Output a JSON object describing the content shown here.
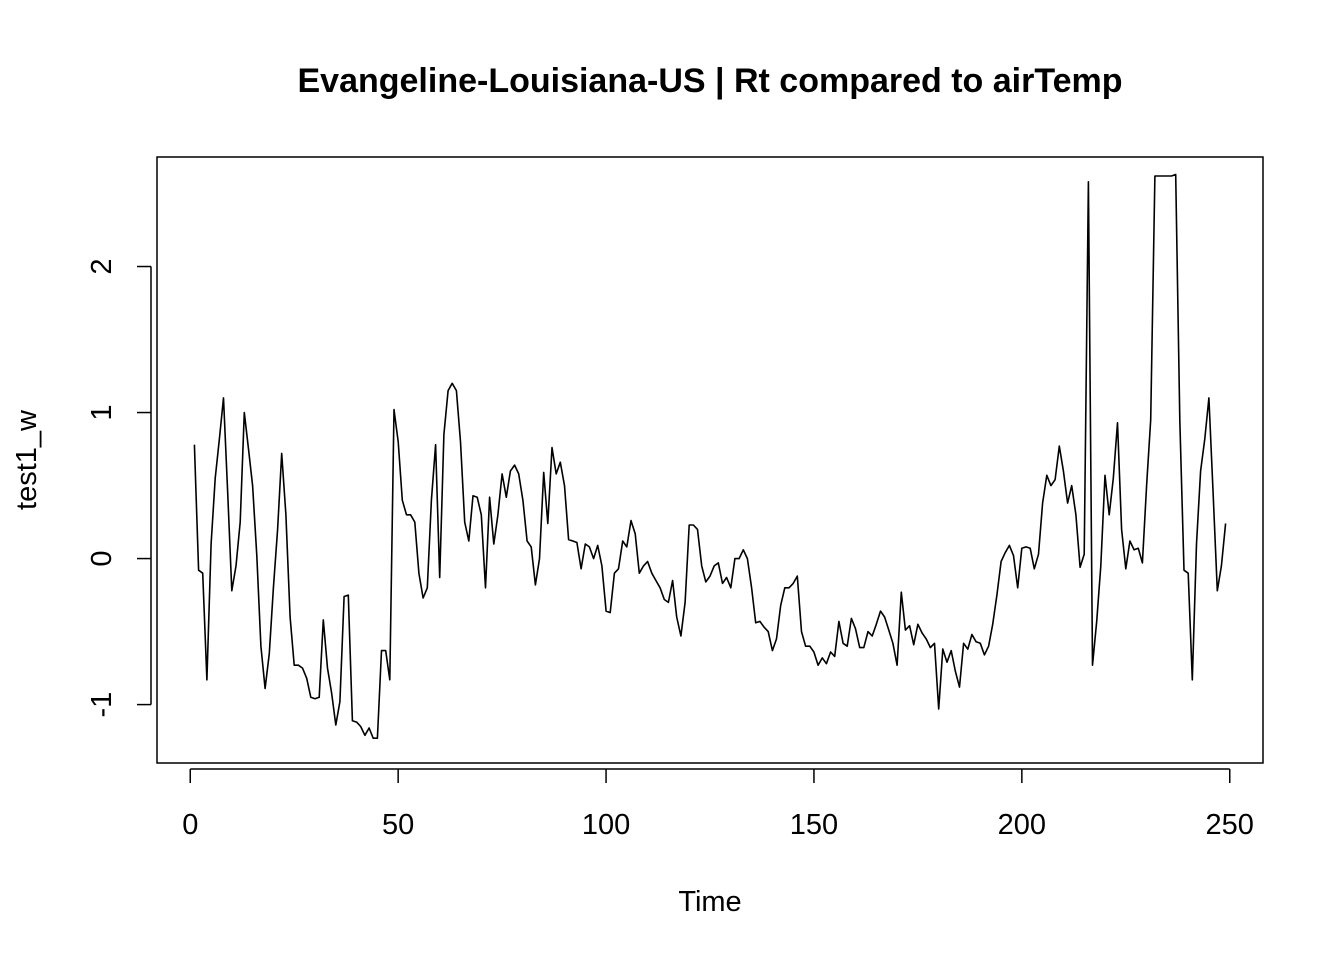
{
  "chart_data": {
    "type": "line",
    "title": "Evangeline-Louisiana-US | Rt compared to airTemp",
    "xlabel": "Time",
    "ylabel": "test1_w",
    "xlim": [
      -8,
      258
    ],
    "ylim": [
      -1.4,
      2.75
    ],
    "xticks": [
      0,
      50,
      100,
      150,
      200,
      250
    ],
    "yticks": [
      -1,
      0,
      1,
      2
    ],
    "grid": false,
    "legend": "none",
    "line_color": "#000000",
    "points": [
      [
        1,
        0.78
      ],
      [
        2,
        -0.08
      ],
      [
        3,
        -0.1
      ],
      [
        4,
        -0.83
      ],
      [
        5,
        0.1
      ],
      [
        6,
        0.55
      ],
      [
        7,
        0.82
      ],
      [
        8,
        1.1
      ],
      [
        9,
        0.45
      ],
      [
        10,
        -0.22
      ],
      [
        11,
        -0.05
      ],
      [
        12,
        0.25
      ],
      [
        13,
        1.0
      ],
      [
        14,
        0.75
      ],
      [
        15,
        0.5
      ],
      [
        16,
        0.02
      ],
      [
        17,
        -0.6
      ],
      [
        18,
        -0.89
      ],
      [
        19,
        -0.65
      ],
      [
        20,
        -0.2
      ],
      [
        21,
        0.2
      ],
      [
        22,
        0.72
      ],
      [
        23,
        0.3
      ],
      [
        24,
        -0.4
      ],
      [
        25,
        -0.73
      ],
      [
        26,
        -0.73
      ],
      [
        27,
        -0.75
      ],
      [
        28,
        -0.82
      ],
      [
        29,
        -0.95
      ],
      [
        30,
        -0.96
      ],
      [
        31,
        -0.95
      ],
      [
        32,
        -0.42
      ],
      [
        33,
        -0.75
      ],
      [
        34,
        -0.92
      ],
      [
        35,
        -1.14
      ],
      [
        36,
        -0.98
      ],
      [
        37,
        -0.26
      ],
      [
        38,
        -0.25
      ],
      [
        39,
        -1.11
      ],
      [
        40,
        -1.12
      ],
      [
        41,
        -1.15
      ],
      [
        42,
        -1.21
      ],
      [
        43,
        -1.16
      ],
      [
        44,
        -1.23
      ],
      [
        45,
        -1.23
      ],
      [
        46,
        -0.63
      ],
      [
        47,
        -0.63
      ],
      [
        48,
        -0.83
      ],
      [
        49,
        1.02
      ],
      [
        50,
        0.8
      ],
      [
        51,
        0.4
      ],
      [
        52,
        0.3
      ],
      [
        53,
        0.3
      ],
      [
        54,
        0.25
      ],
      [
        55,
        -0.1
      ],
      [
        56,
        -0.27
      ],
      [
        57,
        -0.2
      ],
      [
        58,
        0.4
      ],
      [
        59,
        0.78
      ],
      [
        60,
        -0.13
      ],
      [
        61,
        0.85
      ],
      [
        62,
        1.15
      ],
      [
        63,
        1.2
      ],
      [
        64,
        1.15
      ],
      [
        65,
        0.8
      ],
      [
        66,
        0.25
      ],
      [
        67,
        0.12
      ],
      [
        68,
        0.43
      ],
      [
        69,
        0.42
      ],
      [
        70,
        0.3
      ],
      [
        71,
        -0.2
      ],
      [
        72,
        0.42
      ],
      [
        73,
        0.1
      ],
      [
        74,
        0.3
      ],
      [
        75,
        0.58
      ],
      [
        76,
        0.42
      ],
      [
        77,
        0.6
      ],
      [
        78,
        0.64
      ],
      [
        79,
        0.58
      ],
      [
        80,
        0.4
      ],
      [
        81,
        0.12
      ],
      [
        82,
        0.08
      ],
      [
        83,
        -0.18
      ],
      [
        84,
        0.0
      ],
      [
        85,
        0.59
      ],
      [
        86,
        0.24
      ],
      [
        87,
        0.76
      ],
      [
        88,
        0.58
      ],
      [
        89,
        0.66
      ],
      [
        90,
        0.5
      ],
      [
        91,
        0.13
      ],
      [
        92,
        0.12
      ],
      [
        93,
        0.11
      ],
      [
        94,
        -0.07
      ],
      [
        95,
        0.1
      ],
      [
        96,
        0.08
      ],
      [
        97,
        0.0
      ],
      [
        98,
        0.09
      ],
      [
        99,
        -0.05
      ],
      [
        100,
        -0.36
      ],
      [
        101,
        -0.37
      ],
      [
        102,
        -0.1
      ],
      [
        103,
        -0.07
      ],
      [
        104,
        0.12
      ],
      [
        105,
        0.08
      ],
      [
        106,
        0.26
      ],
      [
        107,
        0.17
      ],
      [
        108,
        -0.1
      ],
      [
        109,
        -0.05
      ],
      [
        110,
        -0.02
      ],
      [
        111,
        -0.1
      ],
      [
        112,
        -0.15
      ],
      [
        113,
        -0.2
      ],
      [
        114,
        -0.28
      ],
      [
        115,
        -0.3
      ],
      [
        116,
        -0.15
      ],
      [
        117,
        -0.4
      ],
      [
        118,
        -0.53
      ],
      [
        119,
        -0.3
      ],
      [
        120,
        0.23
      ],
      [
        121,
        0.23
      ],
      [
        122,
        0.2
      ],
      [
        123,
        -0.05
      ],
      [
        124,
        -0.16
      ],
      [
        125,
        -0.12
      ],
      [
        126,
        -0.05
      ],
      [
        127,
        -0.03
      ],
      [
        128,
        -0.17
      ],
      [
        129,
        -0.13
      ],
      [
        130,
        -0.2
      ],
      [
        131,
        0.0
      ],
      [
        132,
        0.0
      ],
      [
        133,
        0.06
      ],
      [
        134,
        0.0
      ],
      [
        135,
        -0.2
      ],
      [
        136,
        -0.44
      ],
      [
        137,
        -0.43
      ],
      [
        138,
        -0.47
      ],
      [
        139,
        -0.5
      ],
      [
        140,
        -0.63
      ],
      [
        141,
        -0.55
      ],
      [
        142,
        -0.32
      ],
      [
        143,
        -0.2
      ],
      [
        144,
        -0.2
      ],
      [
        145,
        -0.17
      ],
      [
        146,
        -0.12
      ],
      [
        147,
        -0.5
      ],
      [
        148,
        -0.6
      ],
      [
        149,
        -0.6
      ],
      [
        150,
        -0.64
      ],
      [
        151,
        -0.73
      ],
      [
        152,
        -0.68
      ],
      [
        153,
        -0.72
      ],
      [
        154,
        -0.64
      ],
      [
        155,
        -0.67
      ],
      [
        156,
        -0.43
      ],
      [
        157,
        -0.58
      ],
      [
        158,
        -0.6
      ],
      [
        159,
        -0.41
      ],
      [
        160,
        -0.48
      ],
      [
        161,
        -0.61
      ],
      [
        162,
        -0.61
      ],
      [
        163,
        -0.5
      ],
      [
        164,
        -0.53
      ],
      [
        165,
        -0.45
      ],
      [
        166,
        -0.36
      ],
      [
        167,
        -0.4
      ],
      [
        168,
        -0.49
      ],
      [
        169,
        -0.58
      ],
      [
        170,
        -0.73
      ],
      [
        171,
        -0.23
      ],
      [
        172,
        -0.49
      ],
      [
        173,
        -0.46
      ],
      [
        174,
        -0.59
      ],
      [
        175,
        -0.45
      ],
      [
        176,
        -0.51
      ],
      [
        177,
        -0.55
      ],
      [
        178,
        -0.61
      ],
      [
        179,
        -0.58
      ],
      [
        180,
        -1.03
      ],
      [
        181,
        -0.62
      ],
      [
        182,
        -0.71
      ],
      [
        183,
        -0.63
      ],
      [
        184,
        -0.77
      ],
      [
        185,
        -0.88
      ],
      [
        186,
        -0.58
      ],
      [
        187,
        -0.62
      ],
      [
        188,
        -0.52
      ],
      [
        189,
        -0.57
      ],
      [
        190,
        -0.58
      ],
      [
        191,
        -0.66
      ],
      [
        192,
        -0.6
      ],
      [
        193,
        -0.45
      ],
      [
        194,
        -0.25
      ],
      [
        195,
        -0.02
      ],
      [
        196,
        0.04
      ],
      [
        197,
        0.09
      ],
      [
        198,
        0.02
      ],
      [
        199,
        -0.2
      ],
      [
        200,
        0.07
      ],
      [
        201,
        0.08
      ],
      [
        202,
        0.07
      ],
      [
        203,
        -0.07
      ],
      [
        204,
        0.03
      ],
      [
        205,
        0.38
      ],
      [
        206,
        0.57
      ],
      [
        207,
        0.5
      ],
      [
        208,
        0.54
      ],
      [
        209,
        0.77
      ],
      [
        210,
        0.6
      ],
      [
        211,
        0.38
      ],
      [
        212,
        0.5
      ],
      [
        213,
        0.3
      ],
      [
        214,
        -0.06
      ],
      [
        215,
        0.03
      ],
      [
        216,
        2.58
      ],
      [
        217,
        -0.73
      ],
      [
        218,
        -0.43
      ],
      [
        219,
        -0.05
      ],
      [
        220,
        0.57
      ],
      [
        221,
        0.3
      ],
      [
        222,
        0.55
      ],
      [
        223,
        0.93
      ],
      [
        224,
        0.2
      ],
      [
        225,
        -0.07
      ],
      [
        226,
        0.12
      ],
      [
        227,
        0.06
      ],
      [
        228,
        0.07
      ],
      [
        229,
        -0.03
      ],
      [
        230,
        0.5
      ],
      [
        231,
        0.95
      ],
      [
        232,
        2.62
      ],
      [
        233,
        2.62
      ],
      [
        234,
        2.62
      ],
      [
        235,
        2.62
      ],
      [
        236,
        2.62
      ],
      [
        237,
        2.63
      ],
      [
        238,
        0.95
      ],
      [
        239,
        -0.08
      ],
      [
        240,
        -0.1
      ],
      [
        241,
        -0.83
      ],
      [
        242,
        0.1
      ],
      [
        243,
        0.6
      ],
      [
        244,
        0.82
      ],
      [
        245,
        1.1
      ],
      [
        246,
        0.45
      ],
      [
        247,
        -0.22
      ],
      [
        248,
        -0.05
      ],
      [
        249,
        0.24
      ]
    ]
  }
}
